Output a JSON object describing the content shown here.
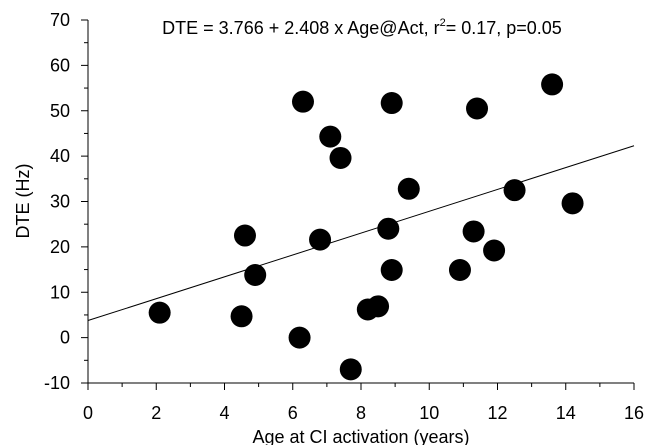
{
  "chart_data": {
    "type": "scatter",
    "title": "DTE = 3.766 + 2.408 x Age@Act, r²= 0.17, p=0.05",
    "title_parts": {
      "prefix": "DTE = 3.766 + 2.408 x Age@Act, r",
      "superscript": "2",
      "suffix": "= 0.17, p=0.05"
    },
    "xlabel": "Age at CI activation (years)",
    "ylabel": "DTE (Hz)",
    "xlim": [
      0,
      16
    ],
    "ylim": [
      -10,
      70
    ],
    "x_ticks": [
      0,
      2,
      4,
      6,
      8,
      10,
      12,
      14,
      16
    ],
    "y_ticks": [
      -10,
      0,
      10,
      20,
      30,
      40,
      50,
      60,
      70
    ],
    "grid": false,
    "regression": {
      "intercept": 3.766,
      "slope": 2.408
    },
    "colors": {
      "points": "#000000",
      "line": "#000000"
    },
    "points": [
      {
        "x": 2.1,
        "y": 5.5
      },
      {
        "x": 4.5,
        "y": 4.7
      },
      {
        "x": 4.6,
        "y": 22.5
      },
      {
        "x": 4.9,
        "y": 13.8
      },
      {
        "x": 6.2,
        "y": 0.0
      },
      {
        "x": 6.3,
        "y": 52.0
      },
      {
        "x": 6.8,
        "y": 21.6
      },
      {
        "x": 7.1,
        "y": 44.3
      },
      {
        "x": 7.4,
        "y": 39.6
      },
      {
        "x": 7.7,
        "y": -7.0
      },
      {
        "x": 8.2,
        "y": 6.2
      },
      {
        "x": 8.5,
        "y": 6.9
      },
      {
        "x": 8.8,
        "y": 24.0
      },
      {
        "x": 8.9,
        "y": 51.7
      },
      {
        "x": 8.9,
        "y": 14.9
      },
      {
        "x": 9.4,
        "y": 32.8
      },
      {
        "x": 10.9,
        "y": 14.9
      },
      {
        "x": 11.3,
        "y": 23.4
      },
      {
        "x": 11.4,
        "y": 50.5
      },
      {
        "x": 11.9,
        "y": 19.2
      },
      {
        "x": 12.5,
        "y": 32.5
      },
      {
        "x": 13.6,
        "y": 55.8
      },
      {
        "x": 14.2,
        "y": 29.6
      }
    ]
  }
}
